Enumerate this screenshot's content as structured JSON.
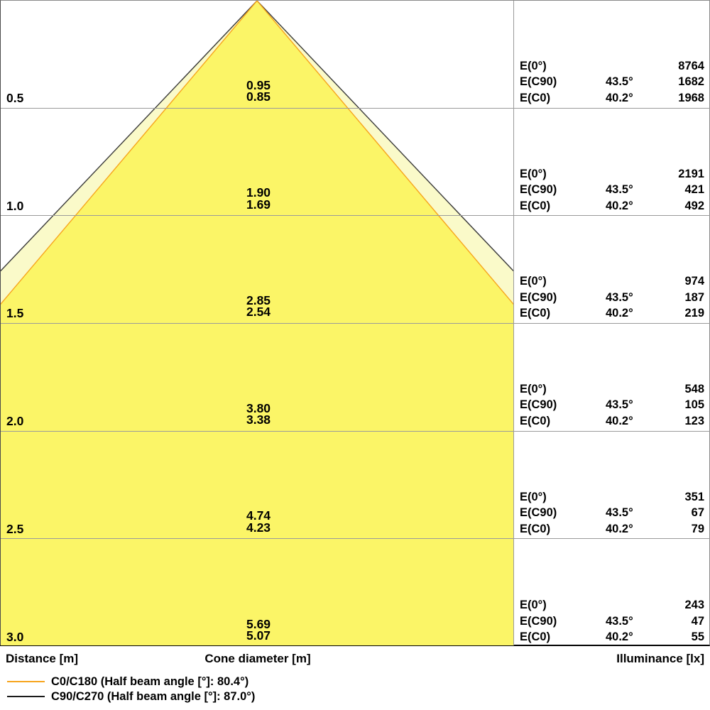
{
  "chart_data": {
    "type": "area",
    "subtype": "photometric-cone-diagram",
    "columns": {
      "distance": "Distance [m]",
      "cone_diameter": "Cone diameter [m]",
      "illuminance": "Illuminance [lx]"
    },
    "row_labels": {
      "e0": "E(0°)",
      "ec90": "E(C90)",
      "ec0": "E(C0)"
    },
    "rows": [
      {
        "distance": "0.5",
        "cone_c90": "0.95",
        "cone_c0": "0.85",
        "e0": "8764",
        "ec90_angle": "43.5°",
        "ec90": "1682",
        "ec0_angle": "40.2°",
        "ec0": "1968"
      },
      {
        "distance": "1.0",
        "cone_c90": "1.90",
        "cone_c0": "1.69",
        "e0": "2191",
        "ec90_angle": "43.5°",
        "ec90": "421",
        "ec0_angle": "40.2°",
        "ec0": "492"
      },
      {
        "distance": "1.5",
        "cone_c90": "2.85",
        "cone_c0": "2.54",
        "e0": "974",
        "ec90_angle": "43.5°",
        "ec90": "187",
        "ec0_angle": "40.2°",
        "ec0": "219"
      },
      {
        "distance": "2.0",
        "cone_c90": "3.80",
        "cone_c0": "3.38",
        "e0": "548",
        "ec90_angle": "43.5°",
        "ec90": "105",
        "ec0_angle": "40.2°",
        "ec0": "123"
      },
      {
        "distance": "2.5",
        "cone_c90": "4.74",
        "cone_c0": "4.23",
        "e0": "351",
        "ec90_angle": "43.5°",
        "ec90": "67",
        "ec0_angle": "40.2°",
        "ec0": "79"
      },
      {
        "distance": "3.0",
        "cone_c90": "5.69",
        "cone_c0": "5.07",
        "e0": "243",
        "ec90_angle": "43.5°",
        "ec90": "47",
        "ec0_angle": "40.2°",
        "ec0": "55"
      }
    ],
    "legend": [
      {
        "label": "C0/C180 (Half beam angle [°]: 80.4°)",
        "color": "#F7A51D"
      },
      {
        "label": "C90/C270 (Half beam angle [°]: 87.0°)",
        "color": "#1A1A1A"
      }
    ],
    "geometry": {
      "half_angle_c90_deg": 43.5,
      "half_angle_c0_deg": 40.2,
      "distance_range_m": [
        0,
        3.0
      ],
      "distance_step_m": 0.5
    },
    "colors": {
      "cone_fill_c90": "#FAFAC9",
      "cone_fill_c0": "#FBF567",
      "cone_edge_c90": "#3A3A3A",
      "cone_edge_c0": "#F7A51D",
      "gridline": "#9a9a9a"
    }
  }
}
